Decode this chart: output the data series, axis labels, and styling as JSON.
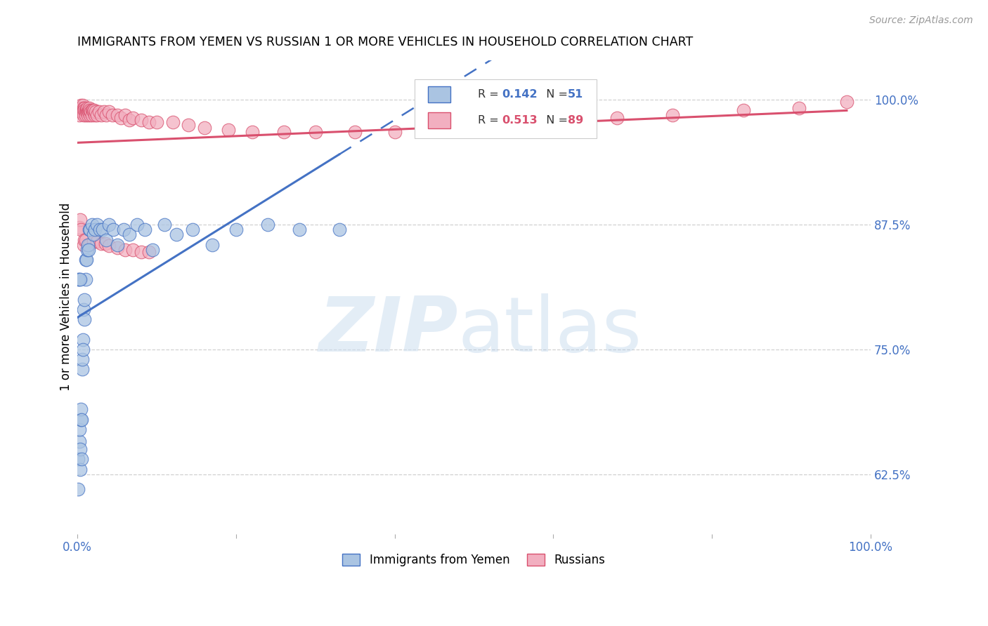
{
  "title": "IMMIGRANTS FROM YEMEN VS RUSSIAN 1 OR MORE VEHICLES IN HOUSEHOLD CORRELATION CHART",
  "source": "Source: ZipAtlas.com",
  "ylabel": "1 or more Vehicles in Household",
  "legend_entry1": "Immigrants from Yemen",
  "legend_entry2": "Russians",
  "R_yemen": 0.142,
  "N_yemen": 51,
  "R_russian": 0.513,
  "N_russian": 89,
  "ytick_labels": [
    "62.5%",
    "75.0%",
    "87.5%",
    "100.0%"
  ],
  "ytick_values": [
    0.625,
    0.75,
    0.875,
    1.0
  ],
  "xlim": [
    0.0,
    1.0
  ],
  "ylim": [
    0.565,
    1.04
  ],
  "color_yemen": "#aac4e2",
  "color_russian": "#f2afc0",
  "line_color_yemen": "#4472c4",
  "line_color_russian": "#d9506e",
  "yemen_x": [
    0.001,
    0.001,
    0.002,
    0.002,
    0.003,
    0.003,
    0.004,
    0.004,
    0.005,
    0.005,
    0.006,
    0.006,
    0.007,
    0.007,
    0.008,
    0.009,
    0.009,
    0.01,
    0.01,
    0.011,
    0.012,
    0.013,
    0.014,
    0.015,
    0.016,
    0.018,
    0.02,
    0.022,
    0.025,
    0.028,
    0.032,
    0.036,
    0.04,
    0.045,
    0.05,
    0.058,
    0.065,
    0.075,
    0.085,
    0.095,
    0.11,
    0.125,
    0.145,
    0.17,
    0.2,
    0.24,
    0.28,
    0.33,
    0.001,
    0.002,
    0.003
  ],
  "yemen_y": [
    0.64,
    0.61,
    0.658,
    0.67,
    0.65,
    0.63,
    0.68,
    0.69,
    0.68,
    0.64,
    0.73,
    0.74,
    0.76,
    0.75,
    0.79,
    0.8,
    0.78,
    0.82,
    0.84,
    0.84,
    0.85,
    0.855,
    0.85,
    0.87,
    0.87,
    0.875,
    0.865,
    0.87,
    0.875,
    0.87,
    0.87,
    0.86,
    0.875,
    0.87,
    0.855,
    0.87,
    0.865,
    0.875,
    0.87,
    0.85,
    0.875,
    0.865,
    0.87,
    0.855,
    0.87,
    0.875,
    0.87,
    0.87,
    0.82,
    0.82,
    0.82
  ],
  "russian_x": [
    0.001,
    0.002,
    0.002,
    0.003,
    0.003,
    0.004,
    0.004,
    0.005,
    0.005,
    0.006,
    0.006,
    0.007,
    0.007,
    0.008,
    0.008,
    0.008,
    0.009,
    0.009,
    0.01,
    0.01,
    0.011,
    0.011,
    0.012,
    0.012,
    0.013,
    0.013,
    0.014,
    0.014,
    0.015,
    0.015,
    0.016,
    0.016,
    0.017,
    0.018,
    0.018,
    0.019,
    0.02,
    0.021,
    0.022,
    0.023,
    0.025,
    0.027,
    0.03,
    0.033,
    0.036,
    0.04,
    0.044,
    0.05,
    0.055,
    0.06,
    0.065,
    0.07,
    0.08,
    0.09,
    0.1,
    0.12,
    0.14,
    0.16,
    0.19,
    0.22,
    0.26,
    0.3,
    0.35,
    0.4,
    0.46,
    0.53,
    0.6,
    0.68,
    0.75,
    0.84,
    0.91,
    0.97,
    0.002,
    0.003,
    0.004,
    0.008,
    0.009,
    0.01,
    0.015,
    0.02,
    0.025,
    0.03,
    0.035,
    0.04,
    0.05,
    0.06,
    0.07,
    0.08,
    0.09
  ],
  "russian_y": [
    0.99,
    0.99,
    0.985,
    0.99,
    0.988,
    0.995,
    0.992,
    0.99,
    0.988,
    0.992,
    0.99,
    0.988,
    0.995,
    0.992,
    0.99,
    0.985,
    0.992,
    0.99,
    0.99,
    0.985,
    0.99,
    0.988,
    0.99,
    0.992,
    0.988,
    0.985,
    0.99,
    0.988,
    0.99,
    0.992,
    0.985,
    0.99,
    0.988,
    0.99,
    0.985,
    0.99,
    0.988,
    0.99,
    0.985,
    0.988,
    0.985,
    0.988,
    0.985,
    0.988,
    0.985,
    0.988,
    0.985,
    0.985,
    0.982,
    0.985,
    0.98,
    0.982,
    0.98,
    0.978,
    0.978,
    0.978,
    0.975,
    0.972,
    0.97,
    0.968,
    0.968,
    0.968,
    0.968,
    0.968,
    0.97,
    0.975,
    0.978,
    0.982,
    0.985,
    0.99,
    0.992,
    0.998,
    0.872,
    0.88,
    0.87,
    0.855,
    0.86,
    0.86,
    0.855,
    0.858,
    0.858,
    0.856,
    0.856,
    0.854,
    0.852,
    0.85,
    0.85,
    0.848,
    0.848
  ]
}
